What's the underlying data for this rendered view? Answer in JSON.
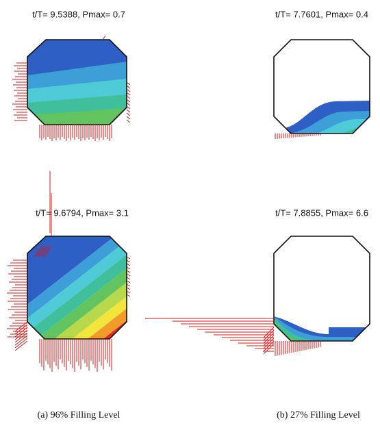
{
  "panels": [
    {
      "title": "t/T= 9.5388, Pmax= 0.7"
    },
    {
      "title": "t/T= 7.7601, Pmax= 0.4"
    },
    {
      "title": "t/T= 9.6794, Pmax= 3.1"
    },
    {
      "title": "t/T= 7.8855, Pmax= 6.6"
    }
  ],
  "captions": [
    "(a) 96% Filling Level",
    "(b) 27% Filling Level"
  ]
}
